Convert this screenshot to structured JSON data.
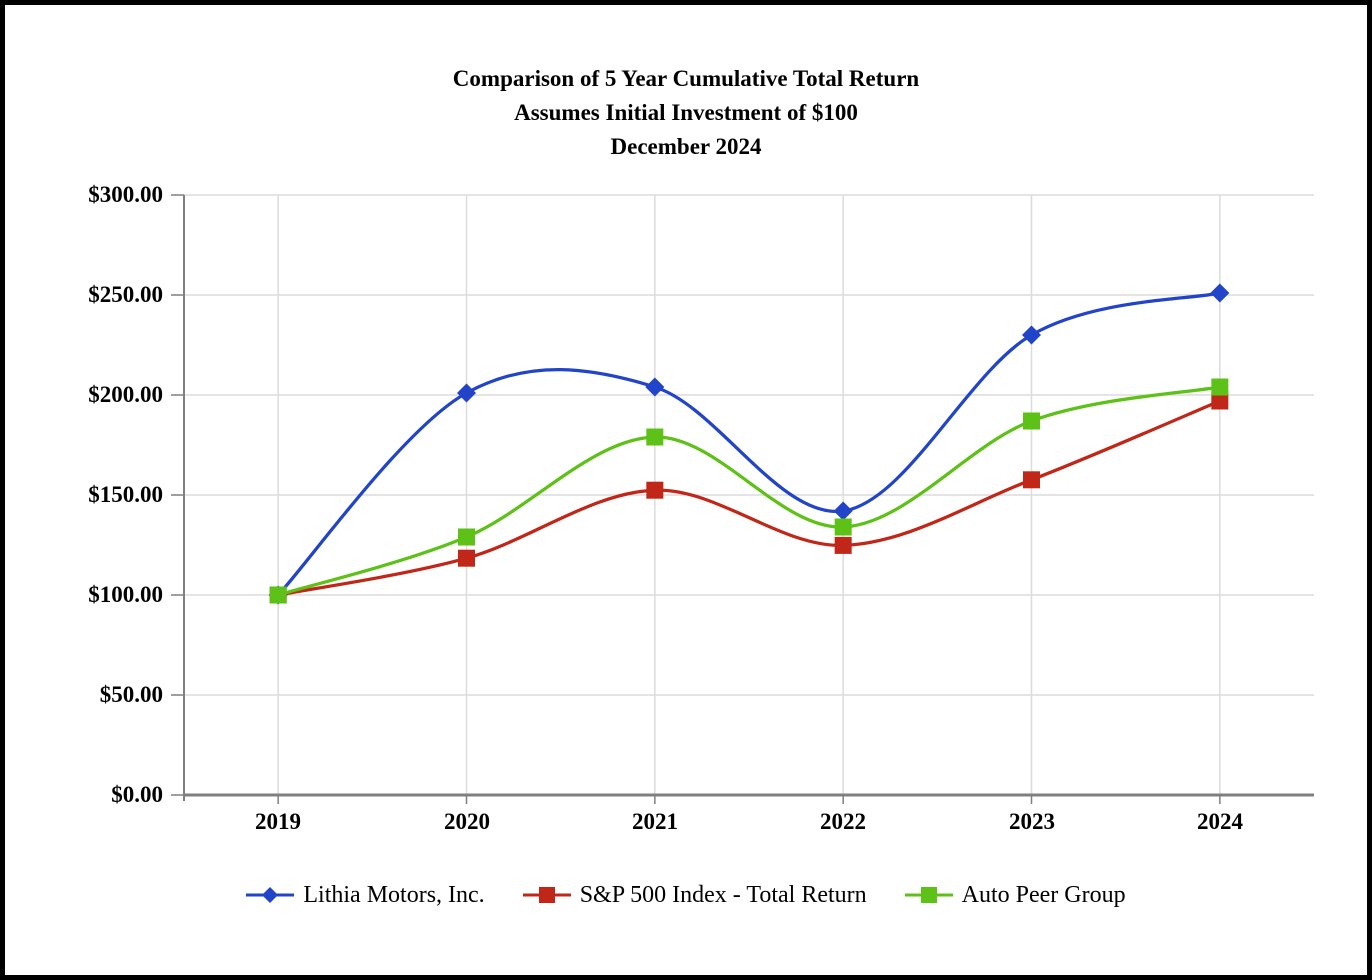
{
  "window": {
    "background": "#ffffff",
    "frame_color": "#000000"
  },
  "title": {
    "line1": "Comparison of 5 Year Cumulative Total Return",
    "line2": "Assumes Initial Investment of $100",
    "line3": "December 2024"
  },
  "chart_data": {
    "type": "line",
    "smooth": true,
    "title": "Comparison of 5 Year Cumulative Total Return — Assumes Initial Investment of $100 — December 2024",
    "categories": [
      "2019",
      "2020",
      "2021",
      "2022",
      "2023",
      "2024"
    ],
    "series": [
      {
        "name": "Lithia Motors, Inc.",
        "color": "#2244C8",
        "marker": "diamond",
        "values": [
          100.0,
          201.0,
          204.0,
          142.0,
          230.0,
          251.0
        ]
      },
      {
        "name": "S&P 500 Index - Total Return",
        "color": "#C02718",
        "marker": "square",
        "values": [
          100.0,
          118.4,
          152.4,
          124.8,
          157.6,
          197.0
        ]
      },
      {
        "name": "Auto Peer Group",
        "color": "#5EC118",
        "marker": "square",
        "values": [
          100.0,
          129.0,
          179.0,
          134.0,
          187.0,
          204.0
        ]
      }
    ],
    "ylim": [
      0,
      300
    ],
    "ytick_step": 50,
    "ytick_labels": [
      "$300.00",
      "$250.00",
      "$200.00",
      "$150.00",
      "$100.00",
      "$50.00",
      "$0.00"
    ],
    "grid": true,
    "gridline_color": "#DCDCDC",
    "axis_color": "#7F7F7F",
    "legend_position": "bottom"
  }
}
